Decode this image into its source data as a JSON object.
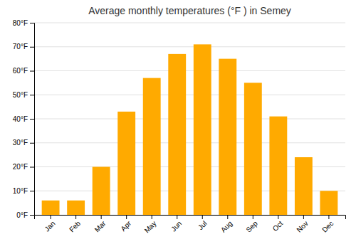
{
  "chart_data": {
    "type": "bar",
    "title": "Average monthly temperatures (°F ) in Semey",
    "categories": [
      "Jan",
      "Feb",
      "Mar",
      "Apr",
      "May",
      "Jun",
      "Jul",
      "Aug",
      "Sep",
      "Oct",
      "Nov",
      "Dec"
    ],
    "values": [
      6,
      6,
      20,
      43,
      57,
      67,
      71,
      65,
      55,
      41,
      24,
      10
    ],
    "color": "#FFAA00",
    "ylim": [
      0,
      80
    ],
    "yticks": [
      {
        "value": 0,
        "label": "0°F"
      },
      {
        "value": 10,
        "label": "10°F"
      },
      {
        "value": 20,
        "label": "20°F"
      },
      {
        "value": 30,
        "label": "30°F"
      },
      {
        "value": 40,
        "label": "40°F"
      },
      {
        "value": 50,
        "label": "50°F"
      },
      {
        "value": 60,
        "label": "60°F"
      },
      {
        "value": 70,
        "label": "70°F"
      },
      {
        "value": 80,
        "label": "80°F"
      }
    ],
    "grid": true
  }
}
